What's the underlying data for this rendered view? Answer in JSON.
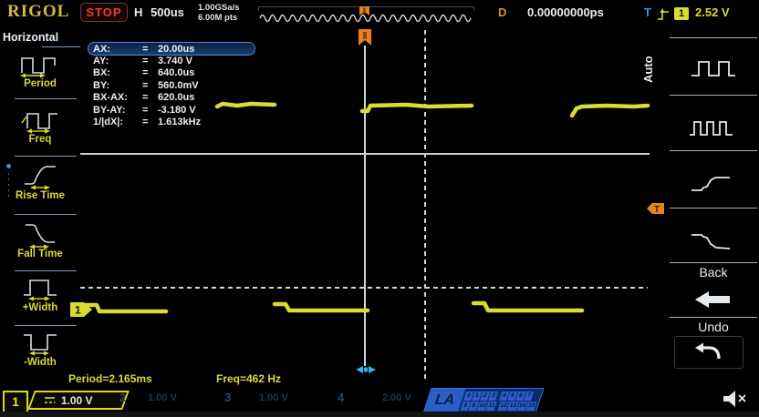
{
  "header": {
    "logo": "RIGOL",
    "run_state": "STOP",
    "horizontal_label": "H",
    "timebase": "500us",
    "sample_rate": "1.00GSa/s",
    "memory_depth": "6.00M pts",
    "delay_label": "D",
    "delay_value": "0.00000000ps",
    "trigger_label": "T",
    "trigger_source": "1",
    "trigger_level": "2.52 V"
  },
  "left_menu": {
    "title": "Horizontal",
    "items": [
      {
        "label": "Period",
        "icon": "period-icon"
      },
      {
        "label": "Freq",
        "icon": "freq-icon"
      },
      {
        "label": "Rise Time",
        "icon": "rise-time-icon"
      },
      {
        "label": "Fall Time",
        "icon": "fall-time-icon"
      },
      {
        "label": "+Width",
        "icon": "plus-width-icon"
      },
      {
        "label": "-Width",
        "icon": "minus-width-icon"
      }
    ]
  },
  "cursor_panel": {
    "rows": [
      {
        "label": "AX:",
        "eq": "=",
        "value": "20.00us",
        "selected": true
      },
      {
        "label": "AY:",
        "eq": "=",
        "value": "3.740 V",
        "selected": false
      },
      {
        "label": "BX:",
        "eq": "=",
        "value": "640.0us",
        "selected": false
      },
      {
        "label": "BY:",
        "eq": "=",
        "value": "560.0mV",
        "selected": false
      },
      {
        "label": "BX-AX:",
        "eq": "=",
        "value": "620.0us",
        "selected": false
      },
      {
        "label": "BY-AY:",
        "eq": "=",
        "value": "-3.180 V",
        "selected": false
      },
      {
        "label": "1/|dX|:",
        "eq": "=",
        "value": "1.613kHz",
        "selected": false
      }
    ]
  },
  "right_menu": {
    "tab": "Auto",
    "back_label": "Back",
    "undo_label": "Undo"
  },
  "markers": {
    "trigger_level_tag": "T",
    "channel1_tag": "1"
  },
  "footer": {
    "period_readout": "Period=2.165ms",
    "freq_readout": "Freq=462 Hz",
    "channels": [
      {
        "num": "1",
        "scale": "1.00 V",
        "active": true
      },
      {
        "num": "2",
        "scale": "1.00 V",
        "active": false
      },
      {
        "num": "3",
        "scale": "1.00 V",
        "active": false
      },
      {
        "num": "4",
        "scale": "2.00 V",
        "active": false
      }
    ],
    "la_label": "LA",
    "la_digits_row1": [
      "0",
      "1",
      "2",
      "3",
      "4",
      "5",
      "6",
      "7"
    ],
    "la_digits_row2": [
      "8",
      "9",
      "10",
      "11",
      "12",
      "13",
      "14",
      "15"
    ]
  },
  "colors": {
    "channel1_yellow": "#d9dc33",
    "trigger_orange": "#e5831d",
    "trigger_blue": "#3f8fd9",
    "stop_red": "#e5432b",
    "logo_gold": "#d9b648",
    "la_blue": "#2a5ec7",
    "cursor_gray": "#cdd5da",
    "cyan_handle": "#32b4e6"
  },
  "waveform": {
    "color": "#d9dc33",
    "thickness": 4.5,
    "segments": [
      {
        "points": [
          [
            92,
            335
          ],
          [
            106,
            335
          ],
          [
            109,
            342
          ],
          [
            182,
            342
          ]
        ]
      },
      {
        "points": [
          [
            238,
            117
          ],
          [
            244,
            114
          ],
          [
            260,
            116
          ],
          [
            275,
            114
          ],
          [
            301,
            115
          ]
        ]
      },
      {
        "points": [
          [
            301,
            334
          ],
          [
            313,
            334
          ],
          [
            317,
            341
          ],
          [
            403,
            341
          ]
        ]
      },
      {
        "points": [
          [
            397,
            122
          ],
          [
            403,
            122
          ],
          [
            406,
            116
          ],
          [
            445,
            115
          ],
          [
            470,
            117
          ],
          [
            517,
            116
          ]
        ]
      },
      {
        "points": [
          [
            519,
            333
          ],
          [
            531,
            333
          ],
          [
            535,
            341
          ],
          [
            638,
            341
          ]
        ]
      },
      {
        "points": [
          [
            627,
            127
          ],
          [
            632,
            119
          ],
          [
            638,
            117
          ],
          [
            665,
            116
          ],
          [
            695,
            117
          ],
          [
            710,
            116
          ]
        ]
      }
    ]
  }
}
